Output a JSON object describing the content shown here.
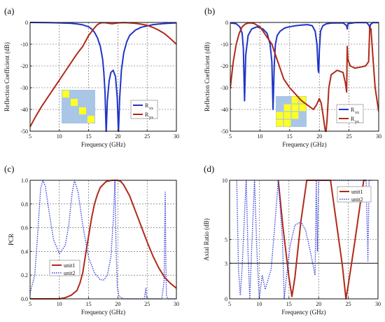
{
  "chart_data": [
    {
      "panel_label": "(a)",
      "type": "line",
      "xlabel": "Frequency (GHz)",
      "ylabel": "Reflection Coefficient (dB)",
      "xlim": [
        5,
        30
      ],
      "ylim": [
        -50,
        0
      ],
      "xticks": [
        5,
        10,
        15,
        20,
        25,
        30
      ],
      "yticks": [
        0,
        -10,
        -20,
        -30,
        -40,
        -50
      ],
      "grid": true,
      "legend_position": "lower-right",
      "inset": "unit-cell-a",
      "series": [
        {
          "name": "Rxx",
          "color": "#1f35c8",
          "style": "solid",
          "x": [
            5,
            8,
            10,
            12,
            13,
            14,
            15,
            15.5,
            16,
            16.5,
            17,
            17.4,
            17.6,
            17.8,
            18,
            18.2,
            18.5,
            18.8,
            19.2,
            19.6,
            19.9,
            20.1,
            20.3,
            20.6,
            21,
            21.5,
            22,
            23,
            24,
            26,
            28,
            30
          ],
          "y": [
            0,
            -0.1,
            -0.2,
            -0.4,
            -0.7,
            -1.1,
            -2,
            -3,
            -4.5,
            -7,
            -11,
            -17,
            -23,
            -32,
            -51,
            -36,
            -27,
            -23,
            -22,
            -25,
            -35,
            -51,
            -35,
            -22,
            -14,
            -9,
            -6,
            -3.5,
            -2.2,
            -1,
            -0.5,
            -0.2
          ]
        },
        {
          "name": "Ryx",
          "color": "#b02a1a",
          "style": "solid",
          "x": [
            5,
            6,
            7,
            8,
            9,
            10,
            11,
            12,
            13,
            14,
            15,
            16,
            16.5,
            17,
            17.5,
            18,
            19,
            20,
            21,
            22,
            23,
            24,
            25,
            26,
            27,
            28,
            29,
            30
          ],
          "y": [
            -48,
            -43,
            -38.5,
            -34.5,
            -30.5,
            -26.5,
            -22.5,
            -18.5,
            -14.5,
            -11,
            -6,
            -2.5,
            -1,
            -0.3,
            -0.1,
            -0.2,
            -0.6,
            -0.2,
            -0.1,
            -0.2,
            -0.4,
            -0.8,
            -1.3,
            -2.3,
            -3.6,
            -5.2,
            -7.5,
            -10
          ]
        }
      ]
    },
    {
      "panel_label": "(b)",
      "type": "line",
      "xlabel": "Frequency (GHz)",
      "ylabel": "Reflection Coefficient (dB)",
      "xlim": [
        5,
        30
      ],
      "ylim": [
        -50,
        0
      ],
      "xticks": [
        5,
        10,
        15,
        20,
        25,
        30
      ],
      "yticks": [
        0,
        -10,
        -20,
        -30,
        -40,
        -50
      ],
      "grid": true,
      "legend_position": "lower-right",
      "inset": "unit-cell-b",
      "series": [
        {
          "name": "Rxx",
          "color": "#1f35c8",
          "style": "solid",
          "x": [
            5,
            6,
            6.6,
            7,
            7.2,
            7.4,
            7.6,
            8,
            8.6,
            9.5,
            10.5,
            11.2,
            11.7,
            12,
            12.2,
            12.4,
            12.6,
            12.9,
            13.4,
            14.2,
            15,
            16,
            17,
            18,
            18.8,
            19.3,
            19.6,
            19.8,
            19.9,
            20,
            20.2,
            20.6,
            21.2,
            22,
            24,
            24.6,
            24.7,
            24.8,
            26,
            28,
            28.4,
            28.5,
            28.6,
            29,
            30
          ],
          "y": [
            -0.2,
            -0.6,
            -2,
            -5,
            -12,
            -36,
            -15,
            -6,
            -3,
            -2,
            -3,
            -5,
            -10,
            -18,
            -40,
            -20,
            -10,
            -6,
            -4,
            -2.5,
            -2,
            -1.5,
            -1.2,
            -1,
            -1.5,
            -4,
            -10,
            -22,
            -23,
            -13,
            -4,
            -1.5,
            -0.6,
            -0.3,
            -0.2,
            -1.5,
            -3,
            -0.6,
            -0.1,
            -0.1,
            -1.5,
            -3,
            -1,
            -0.1,
            -0.1
          ]
        },
        {
          "name": "Ryx",
          "color": "#b02a1a",
          "style": "solid",
          "x": [
            5,
            5.5,
            6,
            6.5,
            7,
            7.5,
            8,
            8.5,
            9,
            10,
            11,
            12,
            13,
            14,
            15,
            16,
            17,
            18,
            19,
            19.5,
            20,
            20.3,
            20.6,
            20.9,
            21.1,
            21.3,
            21.6,
            22,
            23,
            24,
            24.4,
            24.6,
            24.7,
            24.8,
            25.2,
            26,
            27,
            27.8,
            28.3,
            28.5,
            28.7,
            29,
            29.4,
            30
          ],
          "y": [
            -30,
            -18,
            -10,
            -5,
            -2,
            -0.8,
            -0.3,
            -0.2,
            -0.5,
            -2,
            -6,
            -10,
            -18,
            -26,
            -30,
            -33,
            -36,
            -38,
            -40,
            -38,
            -35,
            -37,
            -42,
            -48,
            -51,
            -45,
            -30,
            -24,
            -22,
            -23,
            -28,
            -32,
            -11,
            -17,
            -20,
            -21,
            -20.5,
            -20,
            -18,
            -2,
            -3,
            -15,
            -30,
            -41
          ]
        }
      ]
    },
    {
      "panel_label": "(c)",
      "type": "line",
      "xlabel": "Frequency (GHz)",
      "ylabel": "PCR",
      "xlim": [
        5,
        30
      ],
      "ylim": [
        0,
        1
      ],
      "xticks": [
        5,
        10,
        15,
        20,
        25,
        30
      ],
      "yticks": [
        "0.0",
        "0.2",
        "0.4",
        "0.6",
        "0.8",
        "1.0"
      ],
      "grid": true,
      "legend_position": "lower-left",
      "series": [
        {
          "name": "unit1",
          "color": "#b02a1a",
          "style": "solid",
          "x": [
            5,
            9,
            10,
            11,
            12,
            13,
            13.5,
            14,
            14.5,
            15,
            15.5,
            16,
            16.5,
            17,
            18,
            19,
            20,
            20.5,
            21,
            22,
            23,
            24,
            25,
            26,
            27,
            28,
            29,
            30
          ],
          "y": [
            0,
            0,
            0,
            0.01,
            0.03,
            0.07,
            0.13,
            0.22,
            0.38,
            0.53,
            0.68,
            0.8,
            0.88,
            0.94,
            0.99,
            1,
            1,
            0.99,
            0.96,
            0.87,
            0.74,
            0.61,
            0.48,
            0.36,
            0.26,
            0.18,
            0.13,
            0.09
          ]
        },
        {
          "name": "unit2",
          "color": "#3a44d8",
          "style": "dotted",
          "x": [
            5,
            5.8,
            6.3,
            6.8,
            7.2,
            7.6,
            8.2,
            9,
            10,
            11,
            11.6,
            12.2,
            12.6,
            13.2,
            14,
            15,
            16,
            17,
            17.6,
            18.2,
            18.8,
            19.2,
            19.5,
            19.7,
            19.9,
            20.2,
            21,
            24.5,
            24.8,
            24.9,
            25.1,
            25.5,
            27.5,
            27.9,
            28,
            28.1,
            28.2,
            28.3,
            28.5,
            29,
            30
          ],
          "y": [
            0.05,
            0.2,
            0.55,
            0.93,
            1,
            0.95,
            0.75,
            0.5,
            0.38,
            0.45,
            0.62,
            0.9,
            1,
            0.9,
            0.62,
            0.35,
            0.22,
            0.16,
            0.16,
            0.2,
            0.35,
            0.65,
            1,
            0.4,
            0.1,
            0.02,
            0,
            0,
            0.09,
            0,
            0,
            0,
            0,
            0.15,
            0.6,
            0.9,
            0.3,
            0.03,
            0,
            0,
            0
          ]
        }
      ]
    },
    {
      "panel_label": "(d)",
      "type": "line",
      "xlabel": "Frequency (GHz)",
      "ylabel": "Axial Ratio (dB)",
      "xlim": [
        5,
        30
      ],
      "ylim": [
        0,
        10
      ],
      "xticks": [
        5,
        10,
        15,
        20,
        25,
        30
      ],
      "yticks": [
        0,
        3,
        5,
        10
      ],
      "reference_line": 3,
      "grid": true,
      "legend_position": "top-right",
      "series": [
        {
          "name": "unit1",
          "color": "#b02a1a",
          "style": "solid",
          "x": [
            13.2,
            14,
            15,
            15.5,
            16,
            17,
            18,
            20,
            22,
            24,
            24.6,
            25,
            26,
            27,
            27.6,
            28
          ],
          "y": [
            10,
            6,
            1.8,
            0.2,
            1.8,
            6.5,
            10,
            10,
            10,
            2.8,
            0,
            1.2,
            4.5,
            8,
            10,
            10
          ]
        },
        {
          "name": "unit2",
          "color": "#3a44d8",
          "style": "dotted",
          "x": [
            6.2,
            6.5,
            6.8,
            7.1,
            7.5,
            7.8,
            8.1,
            8.4,
            8.7,
            9.2,
            9.6,
            10,
            10.5,
            11,
            12,
            12.5,
            13.2,
            13.9,
            14.2,
            14.5,
            15.2,
            16,
            17,
            17.8,
            18.6,
            19.4,
            19.6,
            19.8,
            20,
            28,
            28.3,
            28.5,
            29
          ],
          "y": [
            10,
            2.5,
            0.3,
            2.5,
            7,
            10,
            4,
            0,
            4,
            10,
            4,
            0,
            2,
            0.8,
            2.5,
            5.5,
            10,
            5,
            0,
            1.5,
            4.5,
            6.2,
            6.5,
            5.8,
            4,
            2,
            10,
            4,
            10,
            10,
            3.2,
            10,
            10
          ]
        }
      ]
    }
  ],
  "legend_labels": {
    "a": [
      "R",
      "R"
    ],
    "a_sub": [
      "xx",
      "yx"
    ],
    "b": [
      "R",
      "R"
    ],
    "b_sub": [
      "xx",
      "yx"
    ],
    "c": [
      "unit1",
      "unit2"
    ],
    "d": [
      "unit1",
      "unit2"
    ]
  },
  "colors": {
    "unit_cell_background": "#a9c6e6",
    "unit_cell_patch": "#ffff22",
    "grid": "#555555"
  }
}
